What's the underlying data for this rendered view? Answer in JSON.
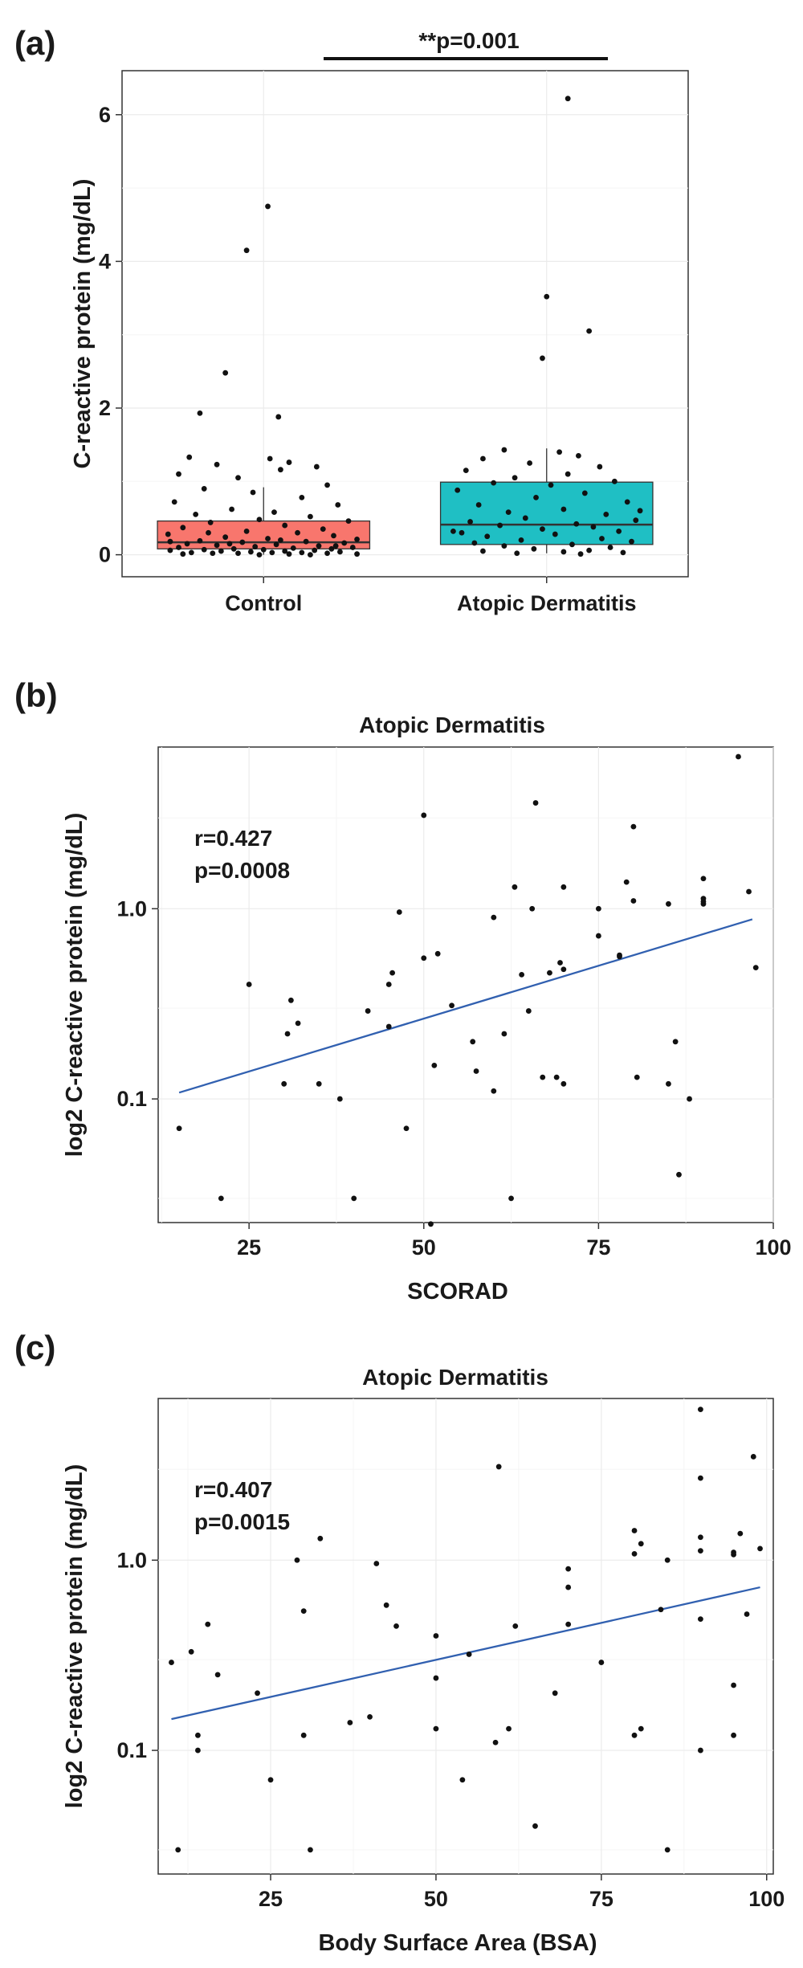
{
  "chart_data": [
    {
      "panel": "(a)",
      "type": "box",
      "title": "",
      "xlabel": "",
      "ylabel": "C-reactive protein (mg/dL)",
      "ylim": [
        -0.3,
        6.6
      ],
      "yticks": [
        0,
        2,
        4,
        6
      ],
      "categories": [
        "Control",
        "Atopic Dermatitis"
      ],
      "colors": [
        "#F8766D",
        "#1FBFC4"
      ],
      "boxes": [
        {
          "name": "Control",
          "min": 0.0,
          "q1": 0.08,
          "median": 0.17,
          "q3": 0.46,
          "max": 0.92
        },
        {
          "name": "Atopic Dermatitis",
          "min": 0.02,
          "q1": 0.14,
          "median": 0.41,
          "q3": 0.99,
          "max": 1.45
        }
      ],
      "significance": "**p=0.001",
      "points": [
        [
          {
            "x": 0.02,
            "y": 4.75
          },
          {
            "x": -0.08,
            "y": 4.15
          },
          {
            "x": -0.18,
            "y": 2.48
          },
          {
            "x": 0.07,
            "y": 1.88
          },
          {
            "x": -0.3,
            "y": 1.93
          },
          {
            "x": -0.35,
            "y": 1.33
          },
          {
            "x": 0.03,
            "y": 1.31
          },
          {
            "x": 0.12,
            "y": 1.26
          },
          {
            "x": -0.22,
            "y": 1.23
          },
          {
            "x": 0.25,
            "y": 1.2
          },
          {
            "x": 0.08,
            "y": 1.16
          },
          {
            "x": -0.4,
            "y": 1.1
          },
          {
            "x": -0.12,
            "y": 1.05
          },
          {
            "x": 0.3,
            "y": 0.95
          },
          {
            "x": -0.28,
            "y": 0.9
          },
          {
            "x": -0.05,
            "y": 0.85
          },
          {
            "x": 0.18,
            "y": 0.78
          },
          {
            "x": -0.42,
            "y": 0.72
          },
          {
            "x": 0.35,
            "y": 0.68
          },
          {
            "x": -0.15,
            "y": 0.62
          },
          {
            "x": 0.05,
            "y": 0.58
          },
          {
            "x": -0.32,
            "y": 0.55
          },
          {
            "x": 0.22,
            "y": 0.52
          },
          {
            "x": -0.02,
            "y": 0.48
          },
          {
            "x": 0.4,
            "y": 0.46
          },
          {
            "x": -0.25,
            "y": 0.44
          },
          {
            "x": 0.1,
            "y": 0.4
          },
          {
            "x": -0.38,
            "y": 0.37
          },
          {
            "x": 0.28,
            "y": 0.35
          },
          {
            "x": -0.08,
            "y": 0.32
          },
          {
            "x": 0.16,
            "y": 0.3
          },
          {
            "x": -0.45,
            "y": 0.28
          },
          {
            "x": 0.33,
            "y": 0.26
          },
          {
            "x": -0.18,
            "y": 0.24
          },
          {
            "x": 0.02,
            "y": 0.22
          },
          {
            "x": 0.44,
            "y": 0.21
          },
          {
            "x": -0.3,
            "y": 0.19
          },
          {
            "x": 0.2,
            "y": 0.18
          },
          {
            "x": -0.1,
            "y": 0.17
          },
          {
            "x": 0.38,
            "y": 0.16
          },
          {
            "x": -0.36,
            "y": 0.15
          },
          {
            "x": 0.06,
            "y": 0.14
          },
          {
            "x": -0.22,
            "y": 0.13
          },
          {
            "x": 0.26,
            "y": 0.12
          },
          {
            "x": -0.04,
            "y": 0.11
          },
          {
            "x": 0.42,
            "y": 0.1
          },
          {
            "x": -0.4,
            "y": 0.1
          },
          {
            "x": 0.14,
            "y": 0.09
          },
          {
            "x": -0.14,
            "y": 0.08
          },
          {
            "x": 0.32,
            "y": 0.08
          },
          {
            "x": -0.28,
            "y": 0.07
          },
          {
            "x": 0.0,
            "y": 0.07
          },
          {
            "x": 0.24,
            "y": 0.06
          },
          {
            "x": -0.44,
            "y": 0.06
          },
          {
            "x": 0.1,
            "y": 0.05
          },
          {
            "x": -0.2,
            "y": 0.05
          },
          {
            "x": 0.36,
            "y": 0.04
          },
          {
            "x": -0.06,
            "y": 0.04
          },
          {
            "x": 0.18,
            "y": 0.03
          },
          {
            "x": -0.34,
            "y": 0.03
          },
          {
            "x": 0.04,
            "y": 0.03
          },
          {
            "x": 0.3,
            "y": 0.02
          },
          {
            "x": -0.24,
            "y": 0.02
          },
          {
            "x": -0.12,
            "y": 0.02
          },
          {
            "x": 0.12,
            "y": 0.01
          },
          {
            "x": 0.44,
            "y": 0.01
          },
          {
            "x": -0.38,
            "y": 0.01
          },
          {
            "x": 0.22,
            "y": 0.0
          },
          {
            "x": -0.02,
            "y": 0.0
          },
          {
            "x": -0.16,
            "y": 0.15
          },
          {
            "x": 0.08,
            "y": 0.2
          },
          {
            "x": -0.26,
            "y": 0.3
          },
          {
            "x": 0.34,
            "y": 0.12
          },
          {
            "x": -0.44,
            "y": 0.18
          }
        ],
        [
          {
            "x": 0.1,
            "y": 6.22
          },
          {
            "x": 0.0,
            "y": 3.52
          },
          {
            "x": -0.02,
            "y": 2.68
          },
          {
            "x": 0.2,
            "y": 3.05
          },
          {
            "x": -0.2,
            "y": 1.43
          },
          {
            "x": 0.06,
            "y": 1.4
          },
          {
            "x": 0.15,
            "y": 1.35
          },
          {
            "x": -0.3,
            "y": 1.31
          },
          {
            "x": -0.08,
            "y": 1.25
          },
          {
            "x": 0.25,
            "y": 1.2
          },
          {
            "x": -0.38,
            "y": 1.15
          },
          {
            "x": 0.1,
            "y": 1.1
          },
          {
            "x": -0.15,
            "y": 1.05
          },
          {
            "x": 0.32,
            "y": 1.0
          },
          {
            "x": -0.25,
            "y": 0.98
          },
          {
            "x": 0.02,
            "y": 0.95
          },
          {
            "x": -0.42,
            "y": 0.88
          },
          {
            "x": 0.18,
            "y": 0.84
          },
          {
            "x": -0.05,
            "y": 0.78
          },
          {
            "x": 0.38,
            "y": 0.72
          },
          {
            "x": -0.32,
            "y": 0.68
          },
          {
            "x": 0.08,
            "y": 0.62
          },
          {
            "x": -0.18,
            "y": 0.58
          },
          {
            "x": 0.28,
            "y": 0.55
          },
          {
            "x": -0.1,
            "y": 0.5
          },
          {
            "x": 0.42,
            "y": 0.47
          },
          {
            "x": -0.36,
            "y": 0.45
          },
          {
            "x": 0.14,
            "y": 0.42
          },
          {
            "x": -0.22,
            "y": 0.4
          },
          {
            "x": 0.22,
            "y": 0.38
          },
          {
            "x": -0.02,
            "y": 0.35
          },
          {
            "x": 0.34,
            "y": 0.32
          },
          {
            "x": -0.4,
            "y": 0.3
          },
          {
            "x": 0.04,
            "y": 0.28
          },
          {
            "x": -0.28,
            "y": 0.25
          },
          {
            "x": 0.26,
            "y": 0.22
          },
          {
            "x": -0.12,
            "y": 0.2
          },
          {
            "x": 0.4,
            "y": 0.18
          },
          {
            "x": -0.34,
            "y": 0.16
          },
          {
            "x": 0.12,
            "y": 0.14
          },
          {
            "x": -0.2,
            "y": 0.12
          },
          {
            "x": 0.3,
            "y": 0.1
          },
          {
            "x": -0.06,
            "y": 0.08
          },
          {
            "x": 0.2,
            "y": 0.06
          },
          {
            "x": -0.3,
            "y": 0.05
          },
          {
            "x": 0.08,
            "y": 0.04
          },
          {
            "x": 0.36,
            "y": 0.03
          },
          {
            "x": -0.14,
            "y": 0.02
          },
          {
            "x": 0.16,
            "y": 0.01
          },
          {
            "x": -0.44,
            "y": 0.32
          },
          {
            "x": 0.44,
            "y": 0.6
          }
        ]
      ]
    },
    {
      "panel": "(b)",
      "type": "scatter",
      "title": "Atopic Dermatitis",
      "xlabel": "SCORAD",
      "ylabel": "log2 C-reactive protein (mg/dL)",
      "xlim": [
        12,
        100
      ],
      "xticks": [
        25,
        50,
        75,
        100
      ],
      "ylim_log10": [
        -1.65,
        0.85
      ],
      "yticks": [
        0.1,
        1.0
      ],
      "ytick_labels": [
        "0.1",
        "1.0"
      ],
      "annotation": [
        "r=0.427",
        "p=0.0008"
      ],
      "fit": {
        "x": [
          15,
          97
        ],
        "y": [
          0.108,
          0.88
        ]
      },
      "points": [
        {
          "x": 15,
          "y": 0.07
        },
        {
          "x": 21,
          "y": 0.03
        },
        {
          "x": 25,
          "y": 0.4
        },
        {
          "x": 30,
          "y": 0.12
        },
        {
          "x": 30.5,
          "y": 0.22
        },
        {
          "x": 31,
          "y": 0.33
        },
        {
          "x": 32,
          "y": 0.25
        },
        {
          "x": 35,
          "y": 0.12
        },
        {
          "x": 38,
          "y": 0.1
        },
        {
          "x": 40,
          "y": 0.03
        },
        {
          "x": 42,
          "y": 0.29
        },
        {
          "x": 45,
          "y": 0.24
        },
        {
          "x": 45,
          "y": 0.4
        },
        {
          "x": 45.5,
          "y": 0.46
        },
        {
          "x": 46.5,
          "y": 0.96
        },
        {
          "x": 47.5,
          "y": 0.07
        },
        {
          "x": 50,
          "y": 0.55
        },
        {
          "x": 50,
          "y": 3.1
        },
        {
          "x": 51,
          "y": 0.022
        },
        {
          "x": 51.5,
          "y": 0.15
        },
        {
          "x": 52,
          "y": 0.58
        },
        {
          "x": 54,
          "y": 0.31
        },
        {
          "x": 57,
          "y": 0.2
        },
        {
          "x": 57.5,
          "y": 0.14
        },
        {
          "x": 60,
          "y": 0.11
        },
        {
          "x": 60,
          "y": 0.9
        },
        {
          "x": 61.5,
          "y": 0.22
        },
        {
          "x": 62.5,
          "y": 0.03
        },
        {
          "x": 63,
          "y": 1.3
        },
        {
          "x": 64,
          "y": 0.45
        },
        {
          "x": 65,
          "y": 0.29
        },
        {
          "x": 65.5,
          "y": 1.0
        },
        {
          "x": 66,
          "y": 3.6
        },
        {
          "x": 67,
          "y": 0.13
        },
        {
          "x": 68,
          "y": 0.46
        },
        {
          "x": 69,
          "y": 0.13
        },
        {
          "x": 69.5,
          "y": 0.52
        },
        {
          "x": 70,
          "y": 0.12
        },
        {
          "x": 70,
          "y": 0.48
        },
        {
          "x": 70,
          "y": 1.3
        },
        {
          "x": 75,
          "y": 1.0
        },
        {
          "x": 75,
          "y": 0.72
        },
        {
          "x": 78,
          "y": 0.57
        },
        {
          "x": 78,
          "y": 0.56
        },
        {
          "x": 79,
          "y": 1.38
        },
        {
          "x": 80,
          "y": 2.7
        },
        {
          "x": 80,
          "y": 1.1
        },
        {
          "x": 80.5,
          "y": 0.13
        },
        {
          "x": 85,
          "y": 1.06
        },
        {
          "x": 85,
          "y": 0.12
        },
        {
          "x": 86,
          "y": 0.2
        },
        {
          "x": 86.5,
          "y": 0.04
        },
        {
          "x": 88,
          "y": 0.1
        },
        {
          "x": 90,
          "y": 1.44
        },
        {
          "x": 90,
          "y": 1.13
        },
        {
          "x": 90,
          "y": 1.09
        },
        {
          "x": 90,
          "y": 1.06
        },
        {
          "x": 95,
          "y": 6.3
        },
        {
          "x": 96.5,
          "y": 1.23
        },
        {
          "x": 97.5,
          "y": 0.49
        }
      ]
    },
    {
      "panel": "(c)",
      "type": "scatter",
      "title": "Atopic Dermatitis",
      "xlabel": "Body Surface Area (BSA)",
      "ylabel": "log2 C-reactive protein (mg/dL)",
      "xlim": [
        8,
        101
      ],
      "xticks": [
        25,
        50,
        75,
        100
      ],
      "ylim_log10": [
        -1.65,
        0.85
      ],
      "yticks": [
        0.1,
        1.0
      ],
      "ytick_labels": [
        "0.1",
        "1.0"
      ],
      "annotation": [
        "r=0.407",
        "p=0.0015"
      ],
      "fit": {
        "x": [
          10,
          99
        ],
        "y": [
          0.146,
          0.72
        ]
      },
      "points": [
        {
          "x": 10,
          "y": 0.29
        },
        {
          "x": 11,
          "y": 0.03
        },
        {
          "x": 13,
          "y": 0.33
        },
        {
          "x": 14,
          "y": 0.1
        },
        {
          "x": 14,
          "y": 0.12
        },
        {
          "x": 15.5,
          "y": 0.46
        },
        {
          "x": 17,
          "y": 0.25
        },
        {
          "x": 23,
          "y": 0.2
        },
        {
          "x": 25,
          "y": 0.07
        },
        {
          "x": 29,
          "y": 1.0
        },
        {
          "x": 30,
          "y": 0.54
        },
        {
          "x": 30,
          "y": 0.12
        },
        {
          "x": 31,
          "y": 0.03
        },
        {
          "x": 32.5,
          "y": 1.3
        },
        {
          "x": 37,
          "y": 0.14
        },
        {
          "x": 40,
          "y": 0.15
        },
        {
          "x": 41,
          "y": 0.96
        },
        {
          "x": 42.5,
          "y": 0.58
        },
        {
          "x": 44,
          "y": 0.45
        },
        {
          "x": 50,
          "y": 0.4
        },
        {
          "x": 50,
          "y": 0.24
        },
        {
          "x": 50,
          "y": 0.13
        },
        {
          "x": 54,
          "y": 0.07
        },
        {
          "x": 55,
          "y": 0.32
        },
        {
          "x": 59,
          "y": 0.11
        },
        {
          "x": 59.5,
          "y": 3.1
        },
        {
          "x": 61,
          "y": 0.13
        },
        {
          "x": 62,
          "y": 0.45
        },
        {
          "x": 65,
          "y": 0.04
        },
        {
          "x": 68,
          "y": 0.2
        },
        {
          "x": 70,
          "y": 0.9
        },
        {
          "x": 70,
          "y": 0.72
        },
        {
          "x": 70,
          "y": 0.46
        },
        {
          "x": 75,
          "y": 0.29
        },
        {
          "x": 80,
          "y": 1.43
        },
        {
          "x": 80,
          "y": 1.08
        },
        {
          "x": 80,
          "y": 0.12
        },
        {
          "x": 81,
          "y": 1.22
        },
        {
          "x": 81,
          "y": 0.13
        },
        {
          "x": 84,
          "y": 0.55
        },
        {
          "x": 85,
          "y": 1.0
        },
        {
          "x": 85,
          "y": 0.03
        },
        {
          "x": 90,
          "y": 6.2
        },
        {
          "x": 90,
          "y": 2.7
        },
        {
          "x": 90,
          "y": 1.32
        },
        {
          "x": 90,
          "y": 1.12
        },
        {
          "x": 90,
          "y": 0.49
        },
        {
          "x": 90,
          "y": 0.1
        },
        {
          "x": 95,
          "y": 1.1
        },
        {
          "x": 95,
          "y": 1.07
        },
        {
          "x": 95,
          "y": 0.22
        },
        {
          "x": 95,
          "y": 0.12
        },
        {
          "x": 96,
          "y": 1.38
        },
        {
          "x": 97,
          "y": 0.52
        },
        {
          "x": 98,
          "y": 3.5
        },
        {
          "x": 99,
          "y": 1.15
        }
      ]
    }
  ]
}
